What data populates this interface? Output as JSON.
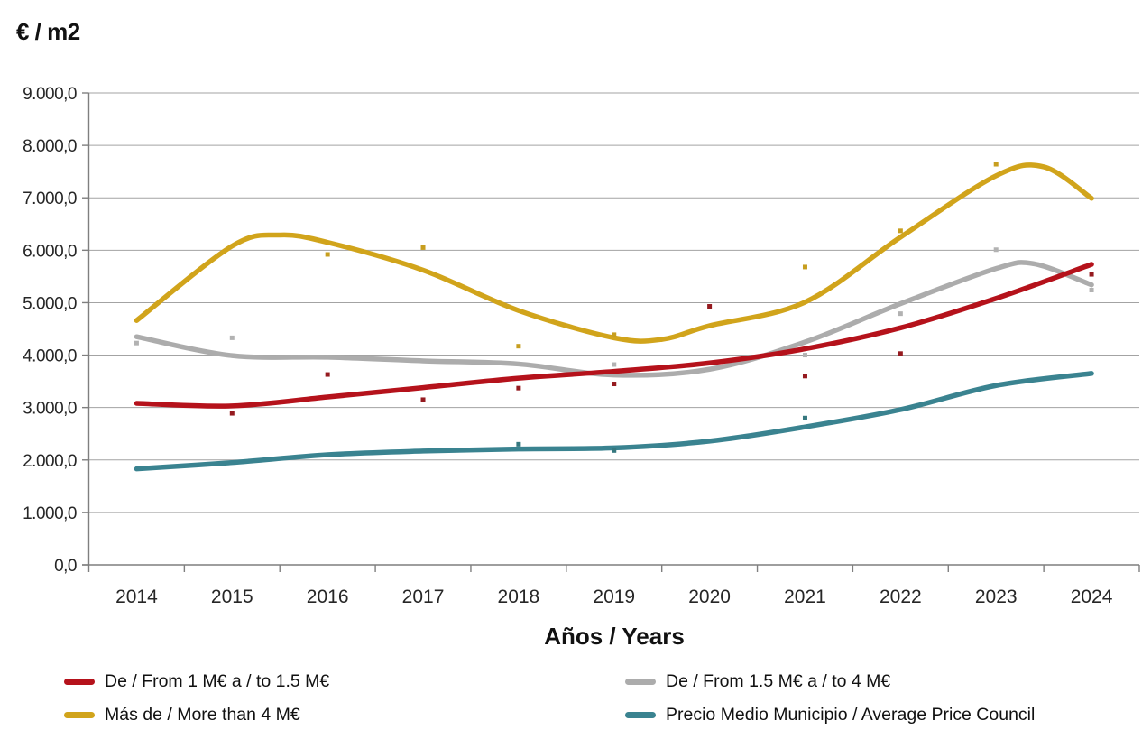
{
  "chart_data": {
    "type": "line",
    "title": "",
    "ylabel": "€ / m2",
    "xlabel": "Años / Years",
    "ylim": [
      0,
      9000
    ],
    "grid": true,
    "legend_position": "bottom",
    "x_categories": [
      "2014",
      "2015",
      "2016",
      "2017",
      "2018",
      "2019",
      "2020",
      "2021",
      "2022",
      "2023",
      "2024"
    ],
    "y_ticks": [
      {
        "value": 0,
        "label": "0,0"
      },
      {
        "value": 1000,
        "label": "1.000,0"
      },
      {
        "value": 2000,
        "label": "2.000,0"
      },
      {
        "value": 3000,
        "label": "3.000,0"
      },
      {
        "value": 4000,
        "label": "4.000,0"
      },
      {
        "value": 5000,
        "label": "5.000,0"
      },
      {
        "value": 6000,
        "label": "6.000,0"
      },
      {
        "value": 7000,
        "label": "7.000,0"
      },
      {
        "value": 8000,
        "label": "8.000,0"
      },
      {
        "value": 9000,
        "label": "9.000,0"
      }
    ],
    "series": [
      {
        "name": "De / From 1 M€ a / to 1.5 M€",
        "color": "#B5121B",
        "marker_color": "#951A1F",
        "trend": [
          [
            2014,
            3080
          ],
          [
            2015,
            3030
          ],
          [
            2016,
            3200
          ],
          [
            2017,
            3380
          ],
          [
            2018,
            3560
          ],
          [
            2019,
            3690
          ],
          [
            2020,
            3850
          ],
          [
            2021,
            4120
          ],
          [
            2022,
            4520
          ],
          [
            2023,
            5080
          ],
          [
            2024,
            5730
          ]
        ],
        "points": [
          [
            2015,
            2890
          ],
          [
            2016,
            3630
          ],
          [
            2017,
            3150
          ],
          [
            2018,
            3370
          ],
          [
            2019,
            3450
          ],
          [
            2020,
            4930
          ],
          [
            2021,
            3600
          ],
          [
            2022,
            4030
          ],
          [
            2024,
            5540
          ]
        ]
      },
      {
        "name": "De / From 1.5 M€ a / to 4 M€",
        "color": "#ACACAC",
        "marker_color": "#B2B2B2",
        "trend": [
          [
            2014,
            4350
          ],
          [
            2015,
            3990
          ],
          [
            2016,
            3960
          ],
          [
            2017,
            3890
          ],
          [
            2018,
            3830
          ],
          [
            2019,
            3620
          ],
          [
            2020,
            3730
          ],
          [
            2021,
            4250
          ],
          [
            2022,
            4980
          ],
          [
            2023,
            5650
          ],
          [
            2023.4,
            5740
          ],
          [
            2024,
            5340
          ]
        ],
        "points": [
          [
            2014,
            4230
          ],
          [
            2015,
            4330
          ],
          [
            2019,
            3820
          ],
          [
            2021,
            4000
          ],
          [
            2022,
            4790
          ],
          [
            2023,
            6010
          ],
          [
            2024,
            5240
          ]
        ]
      },
      {
        "name": "Más de / More than 4 M€",
        "color": "#D1A41B",
        "marker_color": "#C79E1F",
        "trend": [
          [
            2014,
            4660
          ],
          [
            2015,
            6080
          ],
          [
            2015.5,
            6290
          ],
          [
            2016,
            6150
          ],
          [
            2017,
            5620
          ],
          [
            2018,
            4850
          ],
          [
            2019,
            4330
          ],
          [
            2019.5,
            4300
          ],
          [
            2020,
            4560
          ],
          [
            2021,
            5010
          ],
          [
            2022,
            6250
          ],
          [
            2023,
            7420
          ],
          [
            2023.5,
            7590
          ],
          [
            2024,
            6990
          ]
        ],
        "points": [
          [
            2016,
            5920
          ],
          [
            2017,
            6050
          ],
          [
            2018,
            4170
          ],
          [
            2019,
            4390
          ],
          [
            2021,
            5680
          ],
          [
            2022,
            6370
          ],
          [
            2023,
            7640
          ]
        ]
      },
      {
        "name": "Precio Medio Municipio / Average Price Council",
        "color": "#3A8390",
        "marker_color": "#36787F",
        "trend": [
          [
            2014,
            1830
          ],
          [
            2015,
            1950
          ],
          [
            2016,
            2100
          ],
          [
            2017,
            2170
          ],
          [
            2018,
            2210
          ],
          [
            2019,
            2230
          ],
          [
            2020,
            2360
          ],
          [
            2021,
            2630
          ],
          [
            2022,
            2960
          ],
          [
            2023,
            3420
          ],
          [
            2024,
            3650
          ]
        ],
        "points": [
          [
            2018,
            2300
          ],
          [
            2019,
            2180
          ],
          [
            2021,
            2800
          ]
        ]
      }
    ],
    "axis_color": "#7F7F7F",
    "gridline_color": "#A3A3A3"
  }
}
